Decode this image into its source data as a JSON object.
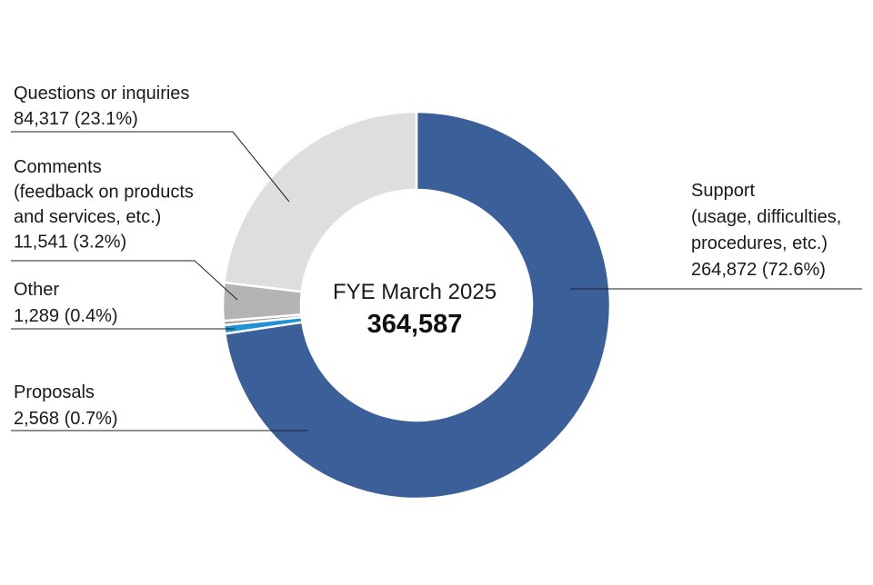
{
  "chart_data": {
    "type": "pie",
    "variant": "donut",
    "center": {
      "title": "FYE March 2025",
      "total": "364,587"
    },
    "slices": [
      {
        "key": "support",
        "value": 264872,
        "percent": 72.6,
        "color": "#3b5f98",
        "label_lines": [
          "Support",
          "(usage, difficulties,",
          "procedures, etc.)",
          "264,872 (72.6%)"
        ]
      },
      {
        "key": "proposals",
        "value": 2568,
        "percent": 0.7,
        "color": "#1f93d6",
        "label_lines": [
          "Proposals",
          "2,568 (0.7%)"
        ]
      },
      {
        "key": "other",
        "value": 1289,
        "percent": 0.4,
        "color": "#9a9a9a",
        "label_lines": [
          "Other",
          "1,289 (0.4%)"
        ]
      },
      {
        "key": "comments",
        "value": 11541,
        "percent": 3.2,
        "color": "#b4b4b4",
        "label_lines": [
          "Comments",
          "(feedback on products",
          "and services, etc.)",
          "11,541 (3.2%)"
        ]
      },
      {
        "key": "questions",
        "value": 84317,
        "percent": 23.1,
        "color": "#dedede",
        "label_lines": [
          "Questions or inquiries",
          "84,317 (23.1%)"
        ]
      }
    ]
  }
}
